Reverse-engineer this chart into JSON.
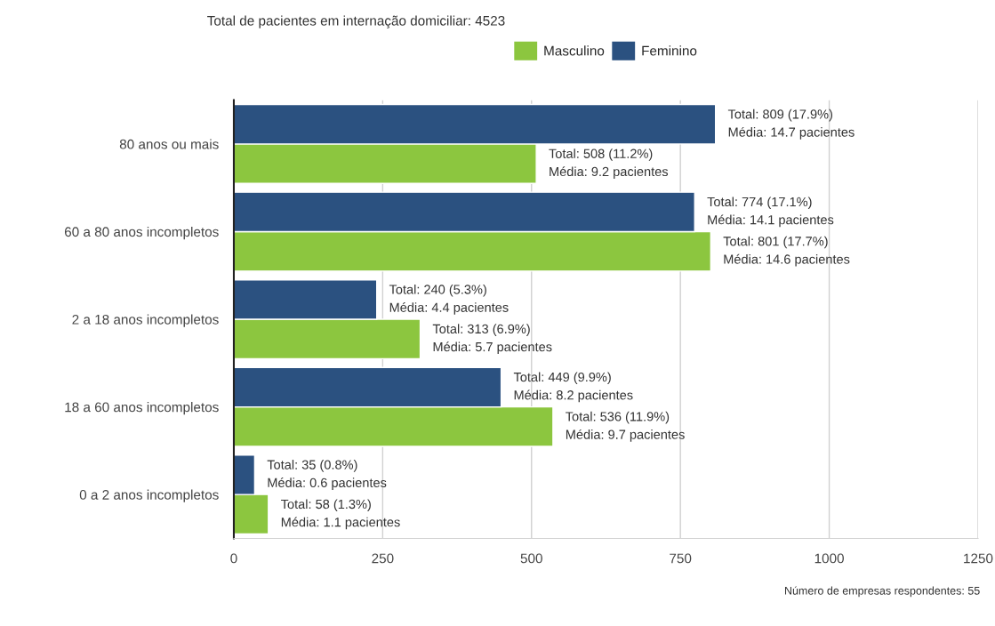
{
  "chart_data": {
    "type": "bar",
    "orientation": "horizontal",
    "title": "Total de pacientes em internação domiciliar: 4523",
    "categories": [
      "80 anos ou mais",
      "60 a 80 anos incompletos",
      "2 a 18 anos incompletos",
      "18 a 60 anos incompletos",
      "0 a 2 anos incompletos"
    ],
    "series": [
      {
        "name": "Masculino",
        "color": "#8cc63f",
        "values": [
          508,
          801,
          313,
          536,
          58
        ],
        "value_labels": [
          "Total: 508 (11.2%)\nMédia: 9.2 pacientes",
          "Total: 801 (17.7%)\nMédia: 14.6 pacientes",
          "Total: 313 (6.9%)\nMédia: 5.7 pacientes",
          "Total: 536 (11.9%)\nMédia: 9.7 pacientes",
          "Total: 58 (1.3%)\nMédia: 1.1 pacientes"
        ]
      },
      {
        "name": "Feminino",
        "color": "#2b5180",
        "values": [
          809,
          774,
          240,
          449,
          35
        ],
        "value_labels": [
          "Total: 809 (17.9%)\nMédia: 14.7 pacientes",
          "Total: 774 (17.1%)\nMédia: 14.1 pacientes",
          "Total: 240 (5.3%)\nMédia: 4.4 pacientes",
          "Total: 449 (9.9%)\nMédia: 8.2 pacientes",
          "Total: 35 (0.8%)\nMédia: 0.6 pacientes"
        ]
      }
    ],
    "xlim": [
      0,
      1250
    ],
    "xticks": [
      0,
      250,
      500,
      750,
      1000,
      1250
    ],
    "grid": "x",
    "legend": "top",
    "annotations": [
      "Número de empresas respondentes: 55"
    ]
  }
}
